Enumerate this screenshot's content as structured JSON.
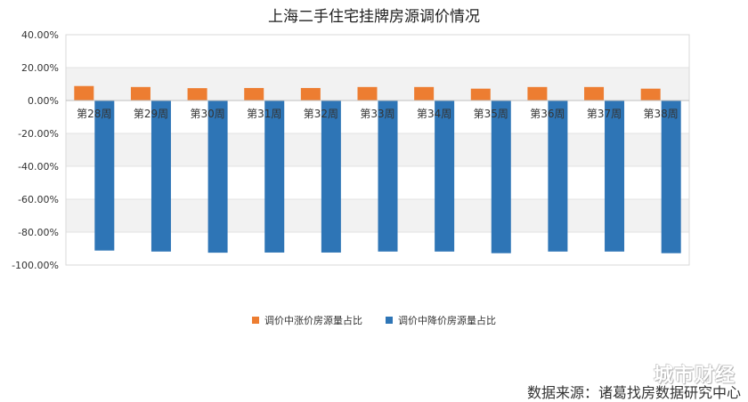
{
  "chart_data": {
    "type": "bar",
    "title": "上海二手住宅挂牌房源调价情况",
    "categories": [
      "第28周",
      "第29周",
      "第30周",
      "第31周",
      "第32周",
      "第33周",
      "第34周",
      "第35周",
      "第36周",
      "第37周",
      "第38周"
    ],
    "series": [
      {
        "name": "调价中涨价房源量占比",
        "color": "#ED7D31",
        "values": [
          8.8,
          8.2,
          7.5,
          7.6,
          7.6,
          8.2,
          8.2,
          7.2,
          8.2,
          8.2,
          7.2
        ]
      },
      {
        "name": "调价中降价房源量占比",
        "color": "#2E75B6",
        "values": [
          -91.2,
          -91.8,
          -92.5,
          -92.4,
          -92.4,
          -91.8,
          -91.8,
          -92.8,
          -91.8,
          -91.8,
          -92.8
        ]
      }
    ],
    "ylim": [
      -100,
      40
    ],
    "yticks": [
      "40.00%",
      "20.00%",
      "0.00%",
      "-20.00%",
      "-40.00%",
      "-60.00%",
      "-80.00%",
      "-100.00%"
    ],
    "ytick_values": [
      40,
      20,
      0,
      -20,
      -40,
      -60,
      -80,
      -100
    ],
    "grid": true,
    "legend_position": "bottom"
  },
  "watermark": "城市财经",
  "source": "数据来源：诸葛找房数据研究中心"
}
